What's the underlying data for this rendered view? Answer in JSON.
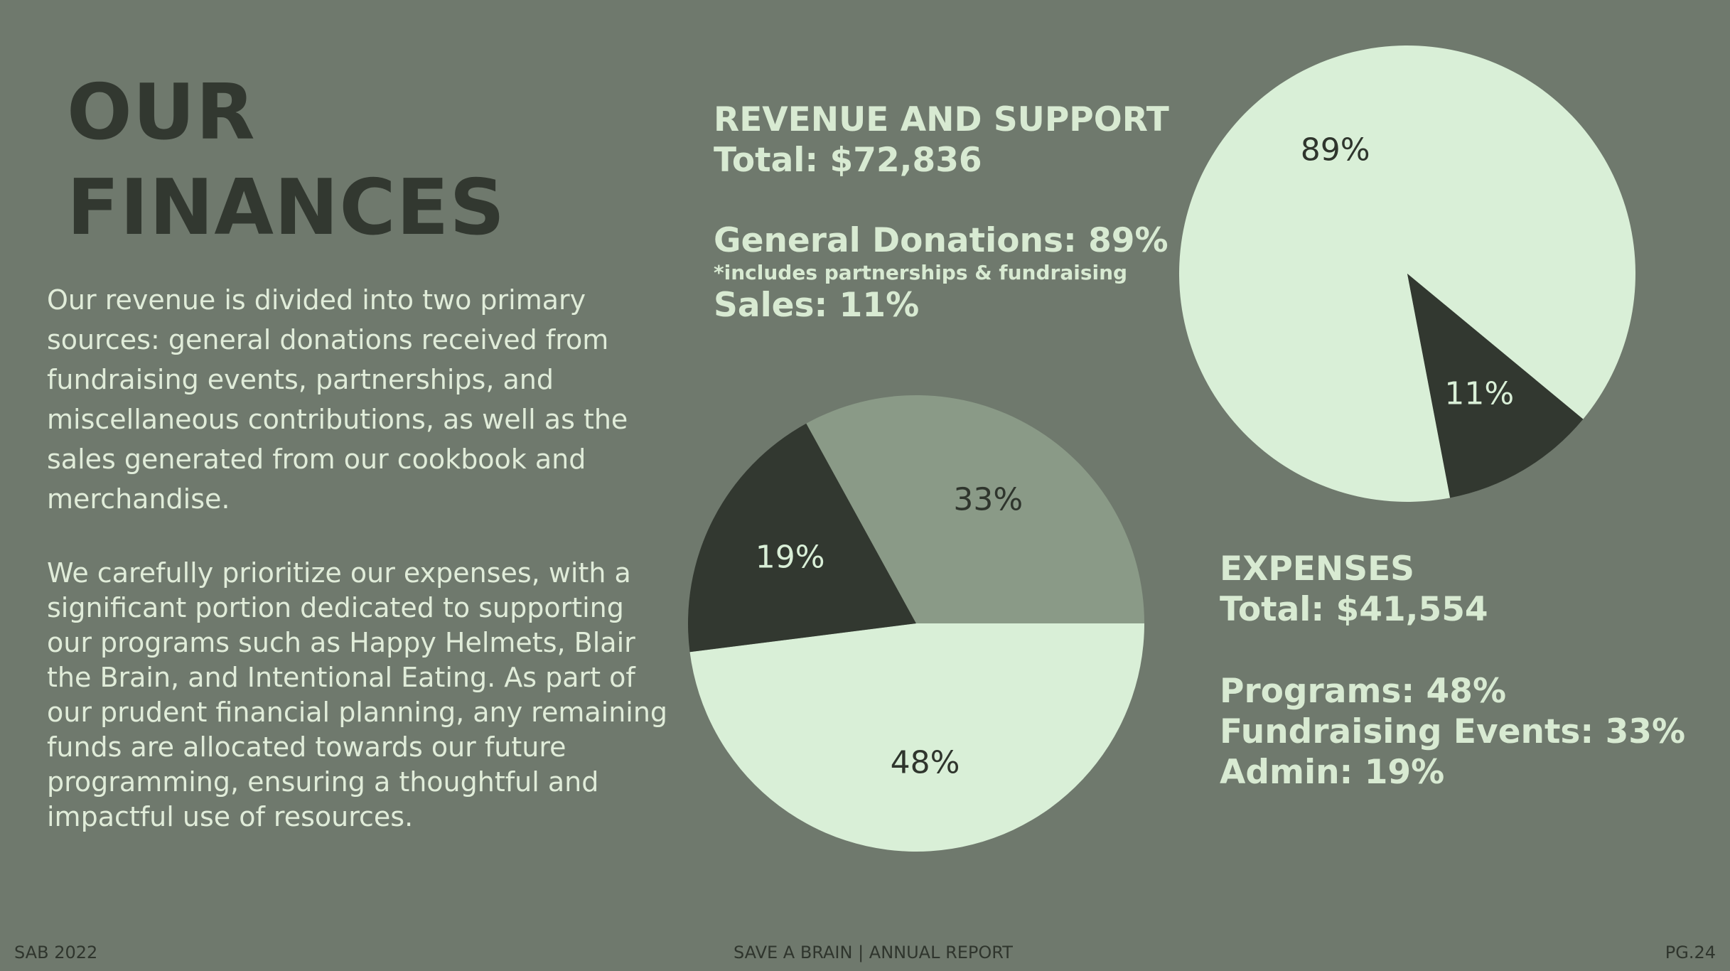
{
  "title": {
    "line1": "OUR",
    "line2": "FINANCES"
  },
  "intro": {
    "paragraph1": "Our revenue is divided into two primary sources: general donations received from fundraising events, partnerships, and miscellaneous contributions, as well as the sales generated from our cookbook and merchandise.",
    "paragraph2": "We carefully prioritize our expenses, with a significant portion dedicated to supporting our programs such as Happy Helmets, Blair the Brain, and Intentional Eating. As part of our prudent financial planning, any remaining funds are allocated towards our future programming, ensuring a thoughtful and impactful use of resources."
  },
  "revenue": {
    "heading": "REVENUE AND SUPPORT",
    "total": "Total: $72,836",
    "donations": "General Donations: 89%",
    "donations_note": "*includes partnerships & fundraising",
    "sales": "Sales: 11%"
  },
  "expenses": {
    "heading": "EXPENSES",
    "total": "Total: $41,554",
    "programs": "Programs: 48%",
    "fundraising": "Fundraising Events: 33%",
    "admin": "Admin: 19%"
  },
  "footer": {
    "left": "SAB 2022",
    "center": "SAVE A BRAIN | ANNUAL REPORT",
    "right": "PG.24"
  },
  "colors": {
    "background": "#6f796d",
    "light_slice": "#d9efd7",
    "dark_slice": "#323830",
    "mid_slice": "#8a9a87"
  },
  "chart_data": [
    {
      "type": "pie",
      "slices": [
        {
          "label": "General Donations",
          "value": 89,
          "display": "89%",
          "color": "#d9efd7",
          "text_color": "#2f352d"
        },
        {
          "label": "Sales",
          "value": 11,
          "display": "11%",
          "color": "#323830",
          "text_color": "#d9efd7"
        }
      ]
    },
    {
      "type": "pie",
      "slices": [
        {
          "label": "Programs",
          "value": 48,
          "display": "48%",
          "color": "#d9efd7",
          "text_color": "#2f352d"
        },
        {
          "label": "Admin",
          "value": 19,
          "display": "19%",
          "color": "#323830",
          "text_color": "#d9efd7"
        },
        {
          "label": "Fundraising Events",
          "value": 33,
          "display": "33%",
          "color": "#8a9a87",
          "text_color": "#2f352d"
        }
      ]
    }
  ]
}
